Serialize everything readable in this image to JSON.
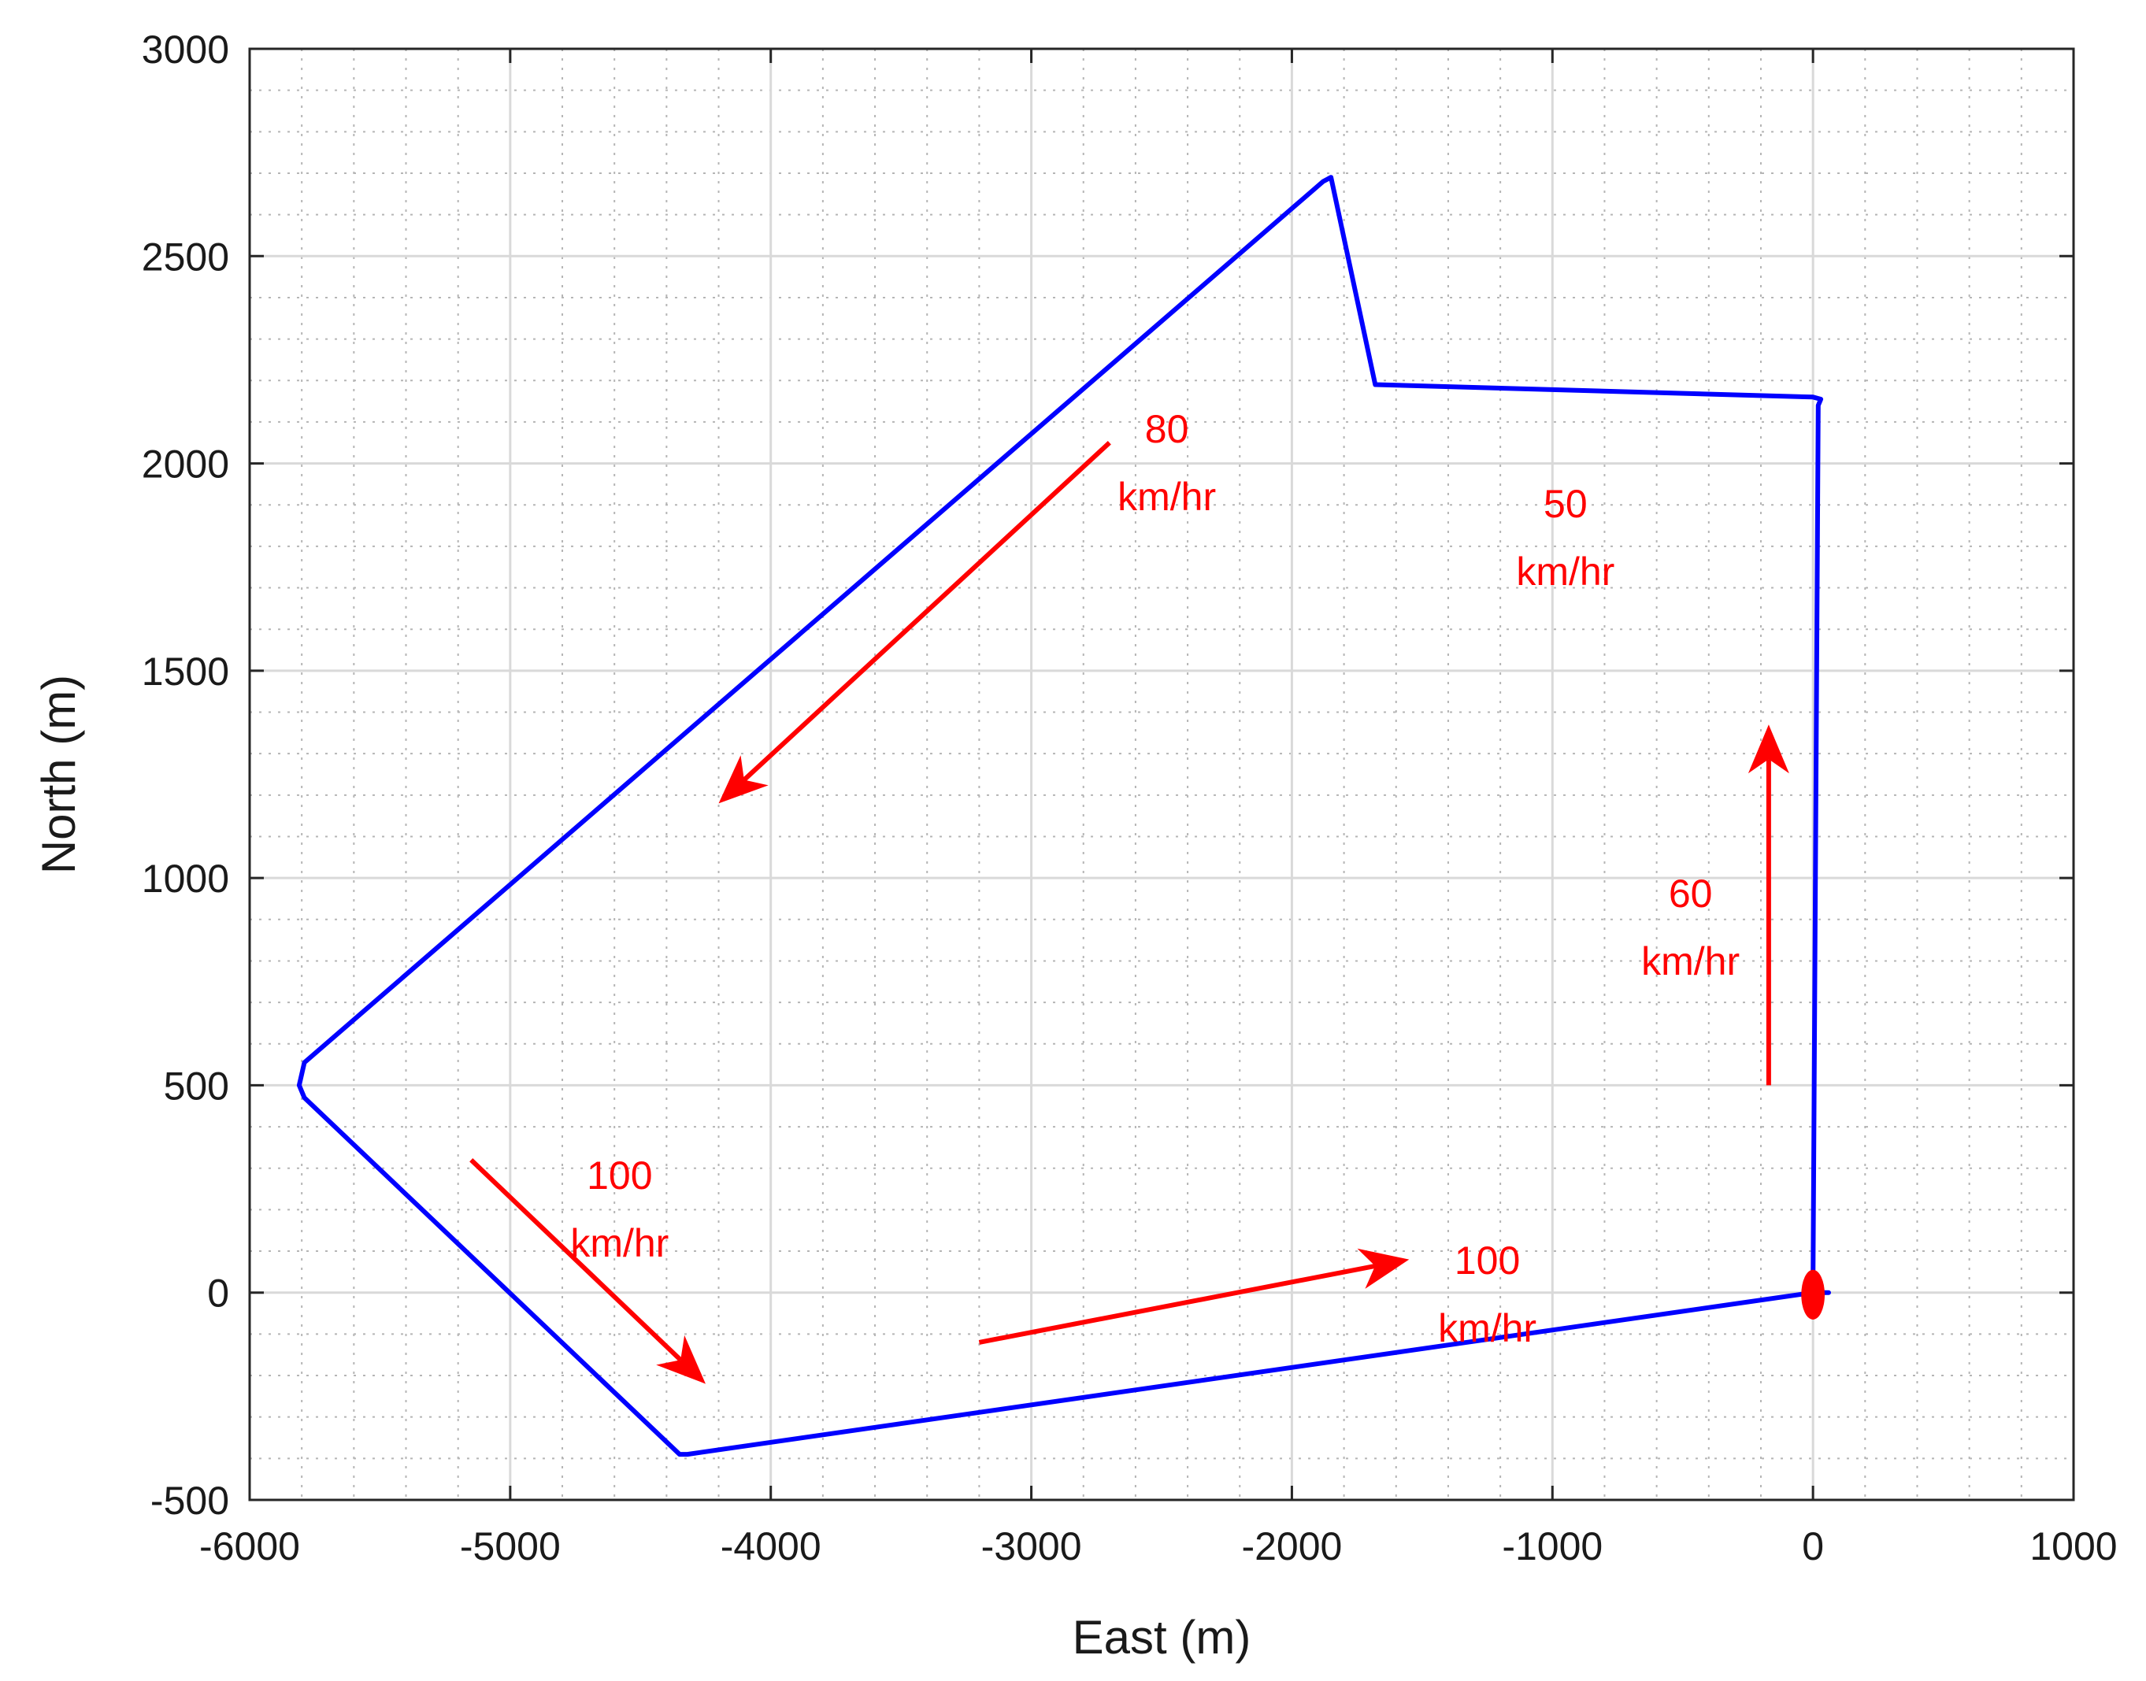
{
  "chart_data": {
    "type": "line",
    "title": "",
    "xlabel": "East (m)",
    "ylabel": "North (m)",
    "xlim": [
      -6000,
      1000
    ],
    "ylim": [
      -500,
      3000
    ],
    "xticks": [
      -6000,
      -5000,
      -4000,
      -3000,
      -2000,
      -1000,
      0,
      1000
    ],
    "yticks": [
      -500,
      0,
      500,
      1000,
      1500,
      2000,
      2500,
      3000
    ],
    "xtick_labels": [
      "-6000",
      "-5000",
      "-4000",
      "-3000",
      "-2000",
      "-1000",
      "0",
      "1000"
    ],
    "ytick_labels": [
      "-500",
      "0",
      "500",
      "1000",
      "1500",
      "2000",
      "2500",
      "3000"
    ],
    "grid": true,
    "minor_grid": true,
    "x_minor_step": 200,
    "y_minor_step": 100,
    "series": [
      {
        "color": "#0000ff",
        "x": [
          60,
          0,
          0,
          20,
          30,
          0,
          -1680,
          -1850,
          -1880,
          -5790,
          -5810,
          -5790,
          -4350,
          -4320,
          0
        ],
        "y": [
          0,
          0,
          5,
          2140,
          2155,
          2160,
          2190,
          2690,
          2680,
          555,
          500,
          470,
          -390,
          -390,
          0
        ]
      }
    ],
    "start_marker": {
      "x": 0,
      "y": -5,
      "rx": 45,
      "ry": 60,
      "color": "#ff0000"
    },
    "arrows": [
      {
        "x1": -2700,
        "y1": 2050,
        "x2": -4200,
        "y2": 1180,
        "color": "#ff0000"
      },
      {
        "x1": -170,
        "y1": 500,
        "x2": -170,
        "y2": 1370,
        "color": "#ff0000"
      },
      {
        "x1": -5150,
        "y1": 320,
        "x2": -4250,
        "y2": -220,
        "color": "#ff0000"
      },
      {
        "x1": -3200,
        "y1": -120,
        "x2": -1550,
        "y2": 80,
        "color": "#ff0000"
      }
    ],
    "annotations": [
      {
        "lines": [
          "80",
          "km/hr"
        ],
        "x": -2480,
        "y": 2050,
        "color": "#ff0000"
      },
      {
        "lines": [
          "50",
          "km/hr"
        ],
        "x": -950,
        "y": 1870,
        "color": "#ff0000"
      },
      {
        "lines": [
          "60",
          "km/hr"
        ],
        "x": -470,
        "y": 930,
        "color": "#ff0000"
      },
      {
        "lines": [
          "100",
          "km/hr"
        ],
        "x": -4580,
        "y": 250,
        "color": "#ff0000"
      },
      {
        "lines": [
          "100",
          "km/hr"
        ],
        "x": -1250,
        "y": 45,
        "color": "#ff0000"
      }
    ]
  }
}
